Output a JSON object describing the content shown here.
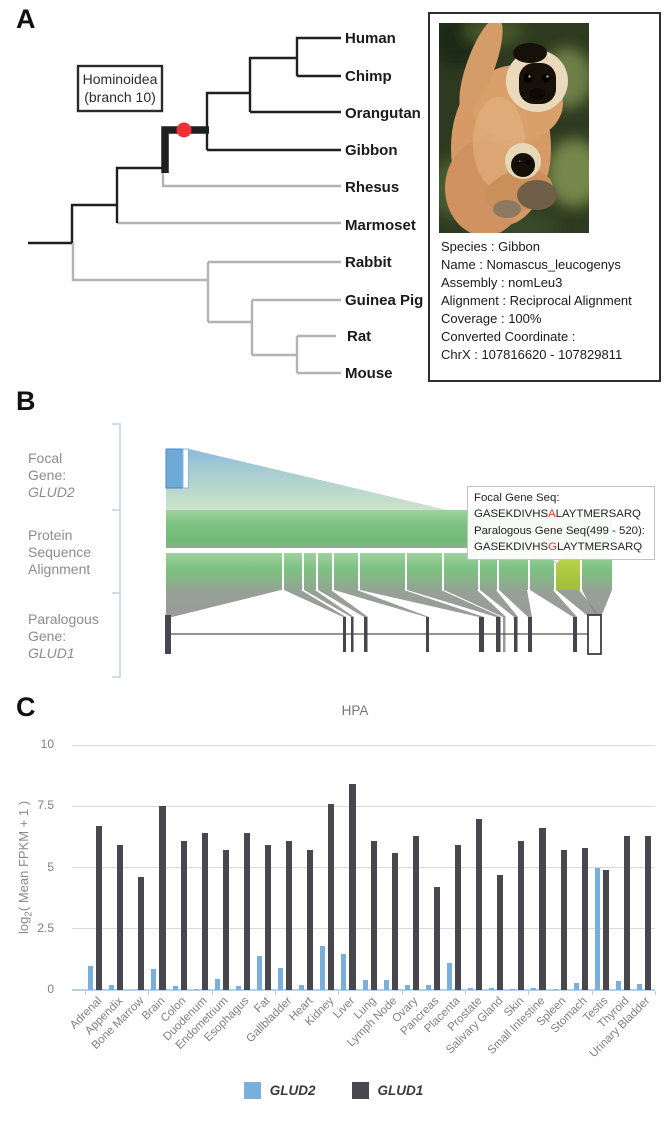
{
  "panelA": {
    "label": "A",
    "tree": {
      "species": [
        "Human",
        "Chimp",
        "Orangutan",
        "Gibbon",
        "Rhesus",
        "Marmoset",
        "Rabbit",
        "Guinea Pig",
        "Rat",
        "Mouse"
      ],
      "clade_label_line1": "Hominoidea",
      "clade_label_line2": "(branch 10)",
      "marker_color": "#ee3233",
      "focal_branch_color": "#1f1f1f",
      "background_branch_color": "#b3b3b3"
    },
    "info_box": {
      "photo": "gibbon-with-infant-photo",
      "lines": [
        "Species : Gibbon",
        "Name : Nomascus_leucogenys",
        "Assembly : nomLeu3",
        "Alignment : Reciprocal Alignment",
        "Coverage : 100%",
        "Converted Coordinate :",
        "ChrX : 107816620 - 107829811"
      ]
    }
  },
  "panelB": {
    "label": "B",
    "row_labels": {
      "focal_line1": "Focal",
      "focal_line2": "Gene:",
      "focal_gene": "GLUD2",
      "align_line1": "Protein",
      "align_line2": "Sequence",
      "align_line3": "Alignment",
      "paralog_line1": "Paralogous",
      "paralog_line2": "Gene:",
      "paralog_gene": "GLUD1"
    },
    "tooltip": {
      "line1": "Focal Gene Seq:",
      "seq1_pre": "GASEKDIVHS",
      "seq1_mut": "A",
      "seq1_post": "LAYTMERSARQ",
      "line3": "Paralogous Gene Seq(499 - 520):",
      "seq2_pre": "GASEKDIVHS",
      "seq2_mut": "G",
      "seq2_post": "LAYTMERSARQ",
      "mut_color": "#d93a2b"
    },
    "colors": {
      "focal_exon_blue": "#6fa9d8",
      "alignment_green": "#7cc17f",
      "highlight_segment_yellow": "#aac93e",
      "paralog_exon_gray": "#46464c"
    }
  },
  "panelC": {
    "label": "C"
  },
  "chart_data": {
    "type": "bar",
    "title": "HPA",
    "xlabel": "",
    "ylabel": "log2( Mean FPKM + 1 )",
    "ylabel_parts": {
      "pre": "log",
      "sub": "2",
      "post": "( Mean FPKM + 1 )"
    },
    "ylim": [
      0,
      10
    ],
    "yticks": [
      0,
      2.5,
      5,
      7.5,
      10
    ],
    "ytick_labels": [
      "0",
      "2.5",
      "5",
      "7.5",
      "10"
    ],
    "grid": true,
    "legend_position": "bottom",
    "categories": [
      "Adrenal",
      "Appendix",
      "Bone Marrow",
      "Brain",
      "Colon",
      "Duodenum",
      "Endometrium",
      "Esophagus",
      "Fat",
      "Gallbladder",
      "Heart",
      "Kidney",
      "Liver",
      "Lung",
      "Lymph Node",
      "Ovary",
      "Pancreas",
      "Placenta",
      "Prostate",
      "Salivary Gland",
      "Skin",
      "Small Intestine",
      "Spleen",
      "Stomach",
      "Testis",
      "Thyroid",
      "Urinary Bladder"
    ],
    "series": [
      {
        "name": "GLUD2",
        "color": "#79afdd",
        "values": [
          1.0,
          0.2,
          0,
          0.85,
          0.15,
          0.05,
          0.45,
          0.15,
          1.4,
          0.9,
          0.2,
          1.8,
          1.45,
          0.4,
          0.4,
          0.2,
          0.2,
          1.1,
          0.1,
          0.1,
          0.05,
          0.1,
          0.05,
          0.3,
          5.0,
          0.35,
          0.25
        ]
      },
      {
        "name": "GLUD1",
        "color": "#47474d",
        "values": [
          6.7,
          5.9,
          4.6,
          7.5,
          6.1,
          6.4,
          5.7,
          6.4,
          5.9,
          6.1,
          5.7,
          7.6,
          8.4,
          6.1,
          5.6,
          6.3,
          4.2,
          5.9,
          7.0,
          4.7,
          6.1,
          6.6,
          5.7,
          5.8,
          4.9,
          6.3,
          6.3
        ]
      }
    ]
  }
}
